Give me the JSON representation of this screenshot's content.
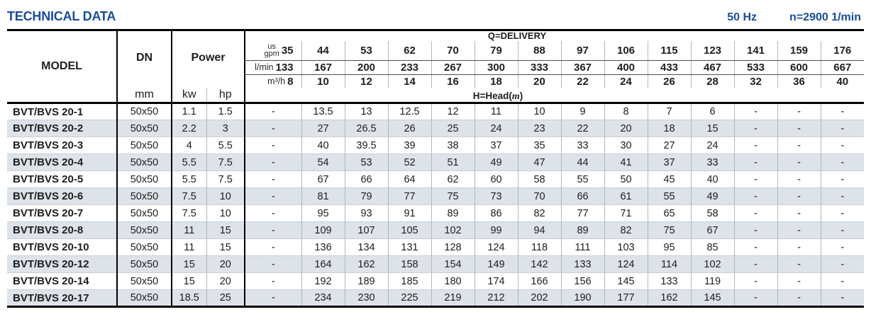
{
  "page": {
    "title": "TECHNICAL DATA",
    "frequency": "50 Hz",
    "speed": "n=2900 1/min"
  },
  "colors": {
    "accent_blue": "#1a4d9a",
    "row_alt": "#dde3e9"
  },
  "table": {
    "headers": {
      "model": "MODEL",
      "dn": "DN",
      "dn_unit": "mm",
      "power": "Power",
      "power_unit_kw": "kw",
      "power_unit_hp": "hp",
      "delivery_title": "Q=DELIVERY",
      "head_prefix": "H=Head(",
      "head_unit": "m",
      "head_suffix": ")",
      "gpm_label_top": "us",
      "gpm_label": "gpm",
      "lmin_label": "l/min",
      "m3h_label": "m³/h"
    },
    "flow": {
      "us_gpm": [
        "35",
        "44",
        "53",
        "62",
        "70",
        "79",
        "88",
        "97",
        "106",
        "115",
        "123",
        "141",
        "159",
        "176"
      ],
      "l_min": [
        "133",
        "167",
        "200",
        "233",
        "267",
        "300",
        "333",
        "367",
        "400",
        "433",
        "467",
        "533",
        "600",
        "667"
      ],
      "m3_h": [
        "8",
        "10",
        "12",
        "14",
        "16",
        "18",
        "20",
        "22",
        "24",
        "26",
        "28",
        "32",
        "36",
        "40"
      ]
    },
    "rows": [
      {
        "model": "BVT/BVS 20-1",
        "dn": "50x50",
        "kw": "1.1",
        "hp": "1.5",
        "head": [
          "-",
          "13.5",
          "13",
          "12.5",
          "12",
          "11",
          "10",
          "9",
          "8",
          "7",
          "6",
          "-",
          "-",
          "-"
        ]
      },
      {
        "model": "BVT/BVS 20-2",
        "dn": "50x50",
        "kw": "2.2",
        "hp": "3",
        "head": [
          "-",
          "27",
          "26.5",
          "26",
          "25",
          "24",
          "23",
          "22",
          "20",
          "18",
          "15",
          "-",
          "-",
          "-"
        ]
      },
      {
        "model": "BVT/BVS 20-3",
        "dn": "50x50",
        "kw": "4",
        "hp": "5.5",
        "head": [
          "-",
          "40",
          "39.5",
          "39",
          "38",
          "37",
          "35",
          "33",
          "30",
          "27",
          "24",
          "-",
          "-",
          "-"
        ]
      },
      {
        "model": "BVT/BVS 20-4",
        "dn": "50x50",
        "kw": "5.5",
        "hp": "7.5",
        "head": [
          "-",
          "54",
          "53",
          "52",
          "51",
          "49",
          "47",
          "44",
          "41",
          "37",
          "33",
          "-",
          "-",
          "-"
        ]
      },
      {
        "model": "BVT/BVS 20-5",
        "dn": "50x50",
        "kw": "5.5",
        "hp": "7.5",
        "head": [
          "-",
          "67",
          "66",
          "64",
          "62",
          "60",
          "58",
          "55",
          "50",
          "45",
          "40",
          "-",
          "-",
          "-"
        ]
      },
      {
        "model": "BVT/BVS 20-6",
        "dn": "50x50",
        "kw": "7.5",
        "hp": "10",
        "head": [
          "-",
          "81",
          "79",
          "77",
          "75",
          "73",
          "70",
          "66",
          "61",
          "55",
          "49",
          "-",
          "-",
          "-"
        ]
      },
      {
        "model": "BVT/BVS 20-7",
        "dn": "50x50",
        "kw": "7.5",
        "hp": "10",
        "head": [
          "-",
          "95",
          "93",
          "91",
          "89",
          "86",
          "82",
          "77",
          "71",
          "65",
          "58",
          "-",
          "-",
          "-"
        ]
      },
      {
        "model": "BVT/BVS 20-8",
        "dn": "50x50",
        "kw": "11",
        "hp": "15",
        "head": [
          "-",
          "109",
          "107",
          "105",
          "102",
          "99",
          "94",
          "89",
          "82",
          "75",
          "67",
          "-",
          "-",
          "-"
        ]
      },
      {
        "model": "BVT/BVS 20-10",
        "dn": "50x50",
        "kw": "11",
        "hp": "15",
        "head": [
          "-",
          "136",
          "134",
          "131",
          "128",
          "124",
          "118",
          "111",
          "103",
          "95",
          "85",
          "-",
          "-",
          "-"
        ]
      },
      {
        "model": "BVT/BVS 20-12",
        "dn": "50x50",
        "kw": "15",
        "hp": "20",
        "head": [
          "-",
          "164",
          "162",
          "158",
          "154",
          "149",
          "142",
          "133",
          "124",
          "114",
          "102",
          "-",
          "-",
          "-"
        ]
      },
      {
        "model": "BVT/BVS 20-14",
        "dn": "50x50",
        "kw": "15",
        "hp": "20",
        "head": [
          "-",
          "192",
          "189",
          "185",
          "180",
          "174",
          "166",
          "156",
          "145",
          "133",
          "119",
          "-",
          "-",
          "-"
        ]
      },
      {
        "model": "BVT/BVS 20-17",
        "dn": "50x50",
        "kw": "18.5",
        "hp": "25",
        "head": [
          "-",
          "234",
          "230",
          "225",
          "219",
          "212",
          "202",
          "190",
          "177",
          "162",
          "145",
          "-",
          "-",
          "-"
        ]
      }
    ]
  }
}
